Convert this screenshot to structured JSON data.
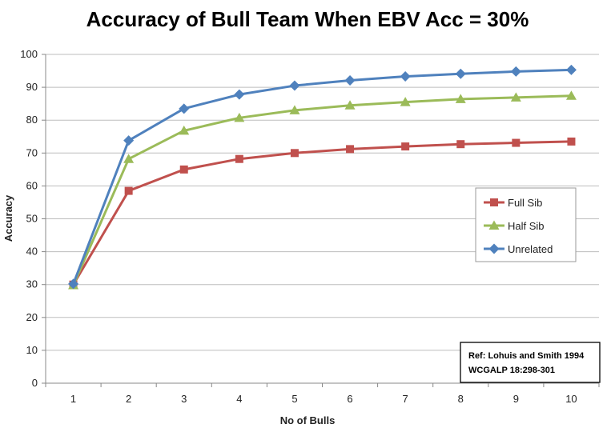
{
  "chart_data": {
    "type": "line",
    "title": "Accuracy of Bull Team When EBV Acc = 30%",
    "xlabel": "No of Bulls",
    "ylabel": "Accuracy",
    "x": [
      1,
      2,
      3,
      4,
      5,
      6,
      7,
      8,
      9,
      10
    ],
    "ylim": [
      0,
      100
    ],
    "yticks": [
      0,
      10,
      20,
      30,
      40,
      50,
      60,
      70,
      80,
      90,
      100
    ],
    "grid": true,
    "legend_position": "right",
    "series": [
      {
        "name": "Full Sib",
        "color": "#C0504D",
        "marker": "square",
        "values": [
          30,
          58.5,
          65,
          68.2,
          70,
          71.2,
          72,
          72.7,
          73.1,
          73.5
        ]
      },
      {
        "name": "Half Sib",
        "color": "#9BBB59",
        "marker": "triangle",
        "values": [
          29.8,
          68.2,
          76.8,
          80.7,
          83,
          84.5,
          85.5,
          86.4,
          86.9,
          87.4
        ]
      },
      {
        "name": "Unrelated",
        "color": "#4F81BD",
        "marker": "diamond",
        "values": [
          30.2,
          73.8,
          83.5,
          87.8,
          90.5,
          92.1,
          93.3,
          94.1,
          94.8,
          95.3
        ]
      }
    ],
    "annotation": {
      "line1": "Ref: Lohuis and Smith 1994",
      "line2": "WCGALP 18:298-301"
    }
  }
}
